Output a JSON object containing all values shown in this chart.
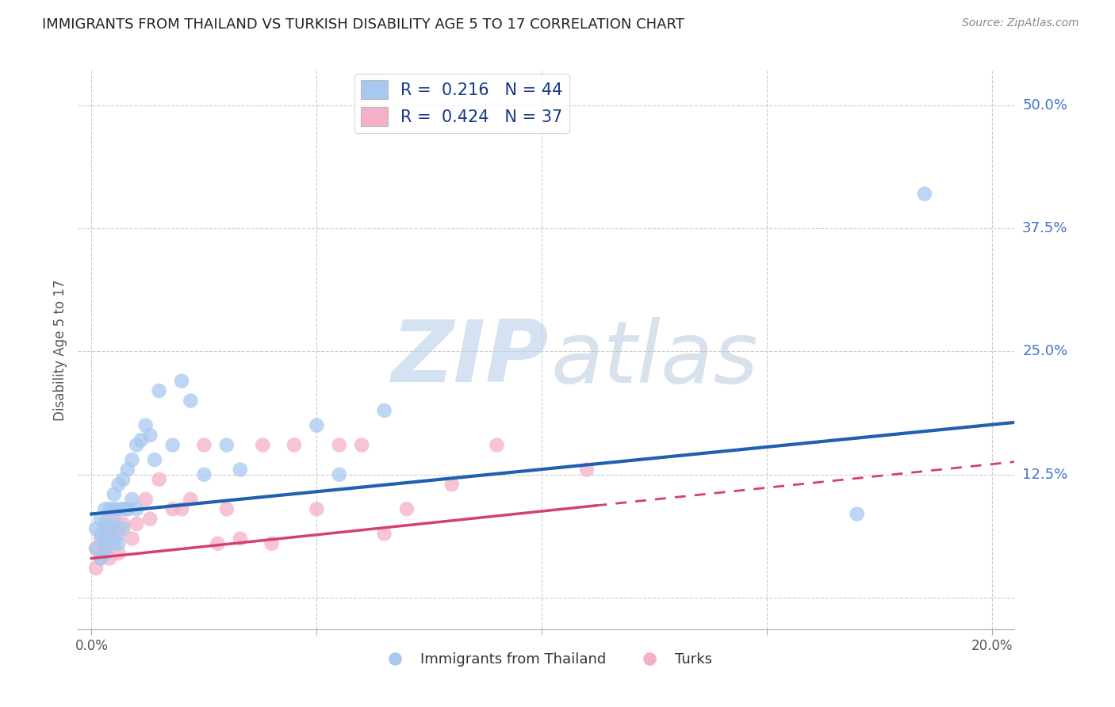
{
  "title": "IMMIGRANTS FROM THAILAND VS TURKISH DISABILITY AGE 5 TO 17 CORRELATION CHART",
  "source": "Source: ZipAtlas.com",
  "ylabel": "Disability Age 5 to 17",
  "y_ticks": [
    0.0,
    0.125,
    0.25,
    0.375,
    0.5
  ],
  "y_tick_labels": [
    "",
    "12.5%",
    "25.0%",
    "37.5%",
    "50.0%"
  ],
  "x_ticks": [
    0.0,
    0.05,
    0.1,
    0.15,
    0.2
  ],
  "x_tick_labels": [
    "0.0%",
    "",
    "",
    "",
    "20.0%"
  ],
  "xlim": [
    -0.003,
    0.205
  ],
  "ylim": [
    -0.032,
    0.535
  ],
  "legend_color1": "#a8c8f0",
  "legend_color2": "#f4b0c8",
  "scatter_color1": "#a8c8f0",
  "scatter_color2": "#f4b0c8",
  "line_color1": "#2060b0",
  "line_color2": "#d44070",
  "legend_label1": "Immigrants from Thailand",
  "legend_label2": "Turks",
  "background_color": "#ffffff",
  "grid_color": "#cccccc",
  "title_color": "#222222",
  "axis_label_color": "#555555",
  "R1": 0.216,
  "N1": 44,
  "R2": 0.424,
  "N2": 37,
  "thai_x": [
    0.001,
    0.001,
    0.002,
    0.002,
    0.002,
    0.003,
    0.003,
    0.003,
    0.003,
    0.004,
    0.004,
    0.004,
    0.005,
    0.005,
    0.005,
    0.005,
    0.006,
    0.006,
    0.006,
    0.007,
    0.007,
    0.007,
    0.008,
    0.008,
    0.009,
    0.009,
    0.01,
    0.01,
    0.011,
    0.012,
    0.013,
    0.014,
    0.015,
    0.018,
    0.02,
    0.022,
    0.025,
    0.03,
    0.033,
    0.05,
    0.055,
    0.065,
    0.17,
    0.185
  ],
  "thai_y": [
    0.05,
    0.07,
    0.04,
    0.065,
    0.08,
    0.045,
    0.06,
    0.075,
    0.09,
    0.055,
    0.07,
    0.09,
    0.06,
    0.075,
    0.09,
    0.105,
    0.055,
    0.09,
    0.115,
    0.07,
    0.09,
    0.12,
    0.09,
    0.13,
    0.1,
    0.14,
    0.09,
    0.155,
    0.16,
    0.175,
    0.165,
    0.14,
    0.21,
    0.155,
    0.22,
    0.2,
    0.125,
    0.155,
    0.13,
    0.175,
    0.125,
    0.19,
    0.085,
    0.41
  ],
  "turk_x": [
    0.001,
    0.001,
    0.002,
    0.002,
    0.003,
    0.003,
    0.004,
    0.004,
    0.005,
    0.005,
    0.006,
    0.006,
    0.007,
    0.008,
    0.009,
    0.01,
    0.012,
    0.013,
    0.015,
    0.018,
    0.02,
    0.022,
    0.025,
    0.028,
    0.03,
    0.033,
    0.038,
    0.04,
    0.045,
    0.05,
    0.055,
    0.06,
    0.065,
    0.07,
    0.08,
    0.09,
    0.11
  ],
  "turk_y": [
    0.03,
    0.05,
    0.04,
    0.06,
    0.05,
    0.07,
    0.04,
    0.065,
    0.055,
    0.08,
    0.045,
    0.065,
    0.075,
    0.09,
    0.06,
    0.075,
    0.1,
    0.08,
    0.12,
    0.09,
    0.09,
    0.1,
    0.155,
    0.055,
    0.09,
    0.06,
    0.155,
    0.055,
    0.155,
    0.09,
    0.155,
    0.155,
    0.065,
    0.09,
    0.115,
    0.155,
    0.13
  ],
  "line1_x0": 0.0,
  "line1_y0": 0.085,
  "line1_x1": 0.205,
  "line1_y1": 0.178,
  "line2_x0": 0.0,
  "line2_y0": 0.04,
  "line2_x1": 0.205,
  "line2_y1": 0.138,
  "line2_solid_end": 0.112
}
